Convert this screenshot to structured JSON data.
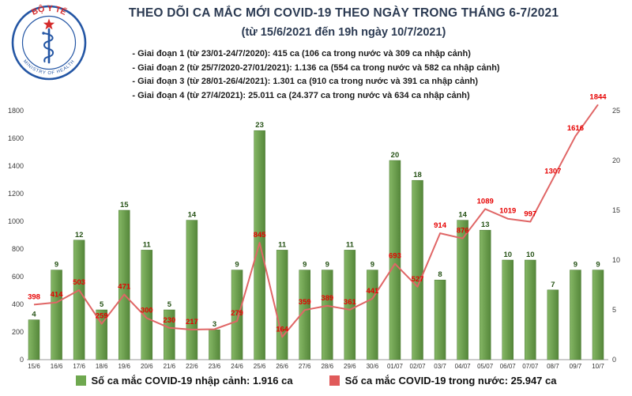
{
  "header": {
    "logo": {
      "top_text": "BỘ Y TẾ",
      "bottom_text": "MINISTRY OF HEALTH"
    },
    "title_line1": "THEO DÕI CA MẮC MỚI COVID-19 THEO NGÀY TRONG THÁNG 6-7/2021",
    "title_line2": "(từ 15/6/2021 đến 19h ngày 10/7/2021)",
    "phases": [
      "- Giai đoạn 1 (từ 23/01-24/7/2020): 415 ca (106 ca trong nước và 309 ca nhập cảnh)",
      "- Giai đoạn 2 (từ 25/7/2020-27/01/2021): 1.136 ca (554 ca trong nước và 582 ca nhập cảnh)",
      "- Giai đoạn 3 (từ 28/01-26/4/2021): 1.301 ca (910 ca trong nước và 391 ca nhập cảnh)",
      "- Giai đoạn 4 (từ 27/4/2021): 25.011 ca (24.377 ca trong nước và 634 ca nhập cảnh)"
    ]
  },
  "chart_data": {
    "type": "bar",
    "title": "THEO DÕI CA MẮC MỚI COVID-19 THEO NGÀY TRONG THÁNG 6-7/2021",
    "categories": [
      "15/6",
      "16/6",
      "17/6",
      "18/6",
      "19/6",
      "20/6",
      "21/6",
      "22/6",
      "23/6",
      "24/6",
      "25/6",
      "26/6",
      "27/6",
      "28/6",
      "29/6",
      "30/6",
      "01/07",
      "02/07",
      "03/7",
      "04/07",
      "05/07",
      "06/07",
      "07/07",
      "08/7",
      "09/7",
      "10/7"
    ],
    "series": [
      {
        "name": "Số ca mắc COVID-19 nhập cảnh",
        "type": "bar",
        "axis": "right",
        "color": "#6fa84f",
        "values": [
          4,
          9,
          12,
          5,
          15,
          11,
          5,
          14,
          3,
          9,
          23,
          11,
          9,
          9,
          11,
          9,
          20,
          18,
          8,
          14,
          13,
          10,
          10,
          7,
          9,
          9
        ]
      },
      {
        "name": "Số ca mắc COVID-19 trong nước",
        "type": "line",
        "axis": "left",
        "color": "#e06666",
        "values": [
          398,
          414,
          503,
          259,
          471,
          300,
          230,
          217,
          220,
          279,
          845,
          164,
          359,
          389,
          361,
          441,
          693,
          527,
          914,
          876,
          1089,
          1019,
          997,
          1307,
          1616,
          1844
        ],
        "labels": [
          "398",
          "414",
          "503",
          "259",
          "471",
          "300",
          "230",
          "217",
          "",
          "279",
          "845",
          "164",
          "359",
          "389",
          "361",
          "441",
          "693",
          "527",
          "914",
          "876",
          "1089",
          "1019",
          "997",
          "1307",
          "1616",
          "1844"
        ]
      }
    ],
    "left_axis": {
      "min": 0,
      "max": 1800,
      "ticks": [
        0,
        200,
        400,
        600,
        800,
        1000,
        1200,
        1400,
        1600,
        1800
      ]
    },
    "right_axis": {
      "min": 0,
      "max": 25,
      "ticks": [
        0,
        5,
        10,
        15,
        20,
        25
      ]
    },
    "grid": false,
    "legend_position": "bottom"
  },
  "legend": [
    {
      "label": "Số ca mắc COVID-19 nhập cảnh: 1.916 ca",
      "color": "#6fa84f"
    },
    {
      "label": "Số ca mắc COVID-19 trong nước: 25.947 ca",
      "color": "#e05a5a"
    }
  ],
  "colors": {
    "bar_fill": "#6fa84f",
    "bar_label": "#275317",
    "line": "#e06666",
    "line_label": "#e60000",
    "axis_text": "#3a3a3a"
  }
}
